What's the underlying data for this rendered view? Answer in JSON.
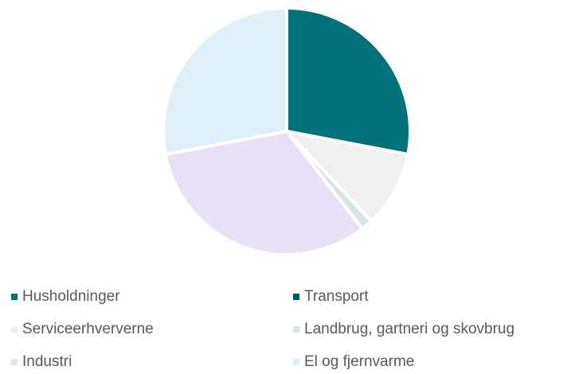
{
  "chart_data": {
    "type": "pie",
    "categories": [
      "Husholdninger",
      "Transport",
      "Serviceerhververne",
      "Landbrug, gartneri og skovbrug",
      "Industri",
      "El og fjernvarme"
    ],
    "values": [
      28,
      0,
      10,
      1.5,
      32.5,
      28
    ],
    "colors": [
      "#00727b",
      "#005a62",
      "#f0f0f0",
      "#d8e5e5",
      "#e8e1f5",
      "#dff0fb"
    ],
    "legend": "bottom"
  }
}
